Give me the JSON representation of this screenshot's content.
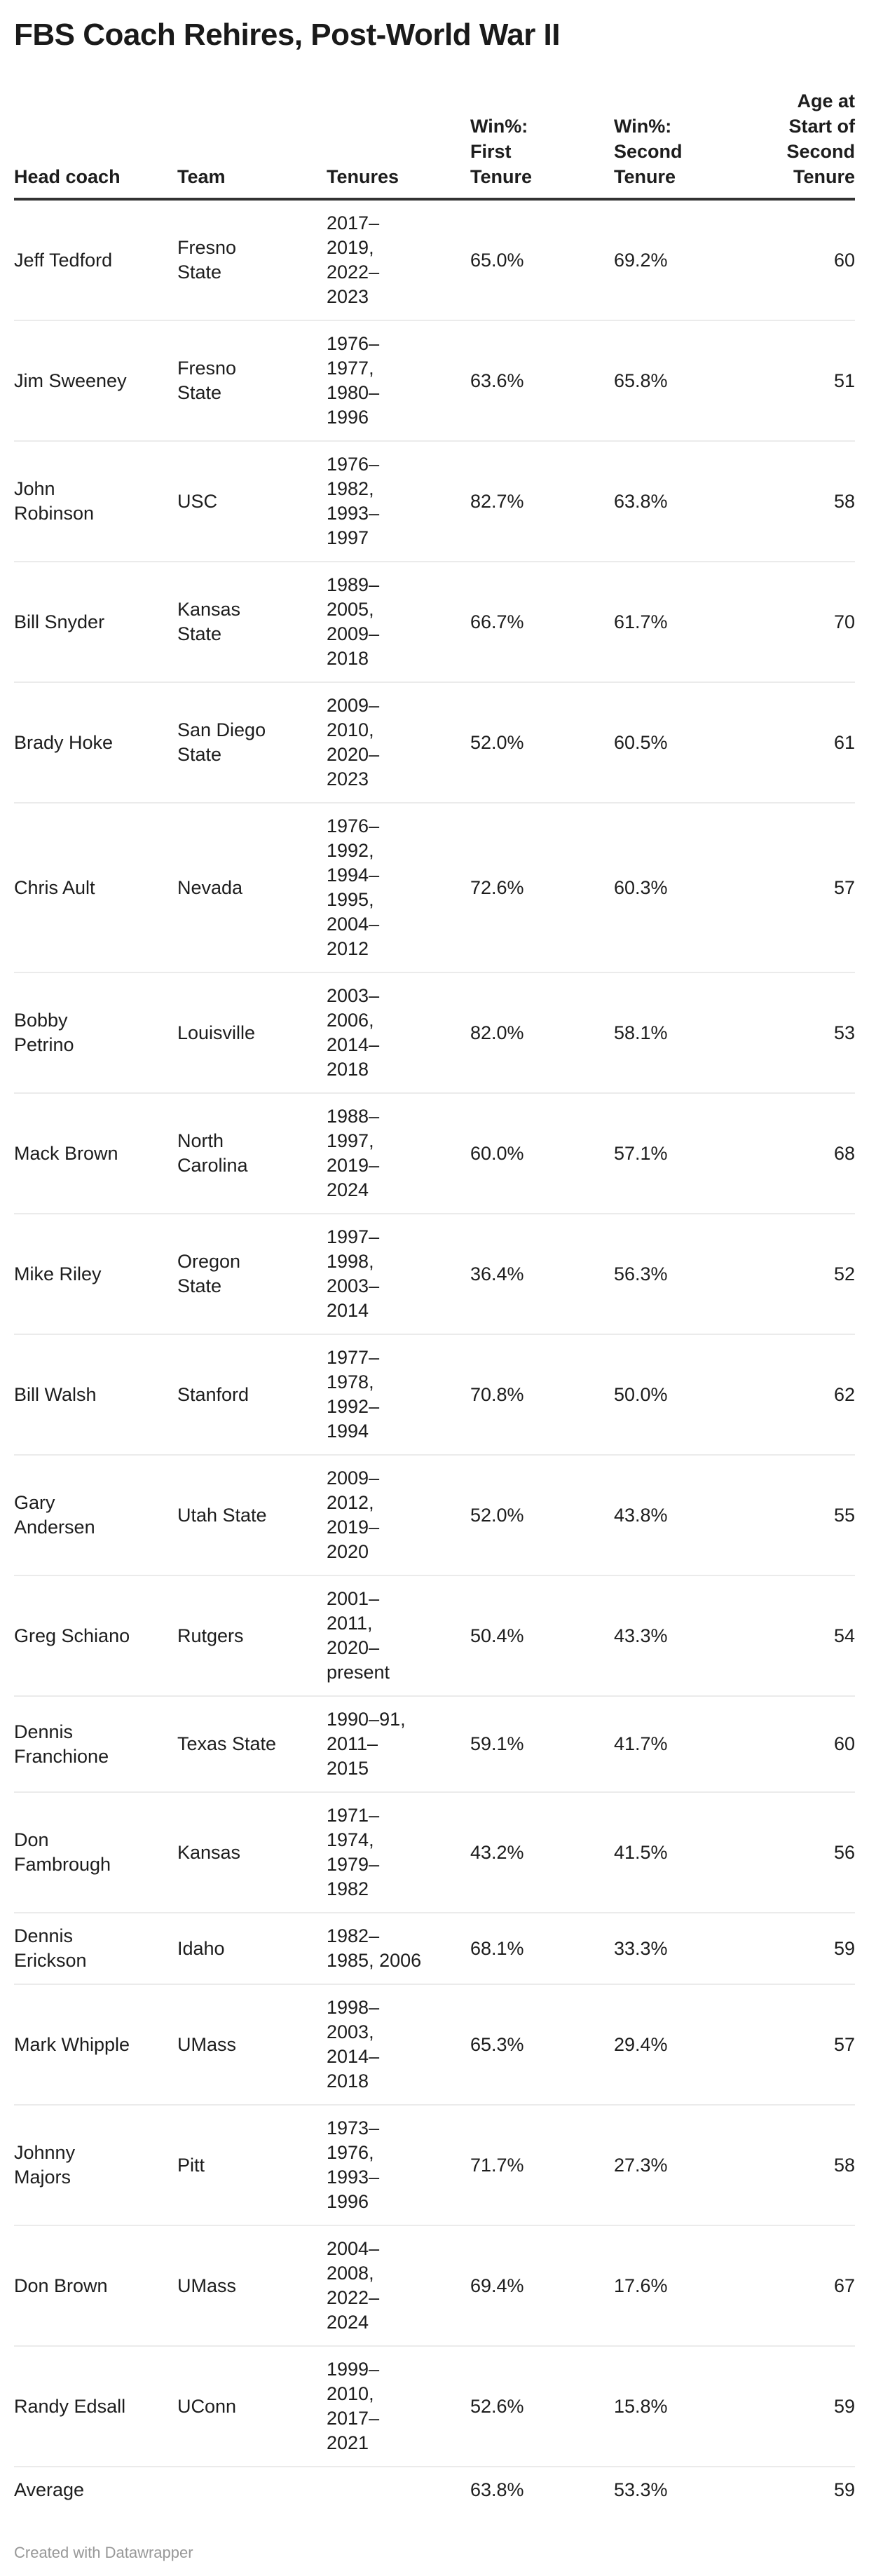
{
  "chart_data": {
    "type": "table",
    "title": "FBS Coach Rehires, Post-World War II",
    "columns": [
      {
        "id": "coach",
        "label": "Head coach",
        "align": "left"
      },
      {
        "id": "team",
        "label": "Team",
        "align": "left"
      },
      {
        "id": "tenures",
        "label": "Tenures",
        "align": "left"
      },
      {
        "id": "win_first",
        "label": [
          "Win%:",
          "First",
          "Tenure"
        ],
        "align": "left"
      },
      {
        "id": "win_second",
        "label": [
          "Win%:",
          "Second",
          "Tenure"
        ],
        "align": "left"
      },
      {
        "id": "age",
        "label": [
          "Age at",
          "Start of",
          "Second",
          "Tenure"
        ],
        "align": "right"
      }
    ],
    "rows": [
      {
        "coach": "Jeff Tedford",
        "team": [
          "Fresno",
          "State"
        ],
        "tenures": [
          "2017–",
          "2019,",
          "2022–",
          "2023"
        ],
        "win_first": "65.0%",
        "win_second": "69.2%",
        "age": "60"
      },
      {
        "coach": "Jim Sweeney",
        "team": [
          "Fresno",
          "State"
        ],
        "tenures": [
          "1976–",
          "1977,",
          "1980–",
          "1996"
        ],
        "win_first": "63.6%",
        "win_second": "65.8%",
        "age": "51"
      },
      {
        "coach": [
          "John",
          "Robinson"
        ],
        "team": "USC",
        "tenures": [
          "1976–",
          "1982,",
          "1993–",
          "1997"
        ],
        "win_first": "82.7%",
        "win_second": "63.8%",
        "age": "58"
      },
      {
        "coach": "Bill Snyder",
        "team": [
          "Kansas",
          "State"
        ],
        "tenures": [
          "1989–",
          "2005,",
          "2009–",
          "2018"
        ],
        "win_first": "66.7%",
        "win_second": "61.7%",
        "age": "70"
      },
      {
        "coach": "Brady Hoke",
        "team": [
          "San Diego",
          "State"
        ],
        "tenures": [
          "2009–",
          "2010,",
          "2020–",
          "2023"
        ],
        "win_first": "52.0%",
        "win_second": "60.5%",
        "age": "61"
      },
      {
        "coach": "Chris Ault",
        "team": "Nevada",
        "tenures": [
          "1976–",
          "1992,",
          "1994–",
          "1995,",
          "2004–",
          "2012"
        ],
        "win_first": "72.6%",
        "win_second": "60.3%",
        "age": "57"
      },
      {
        "coach": [
          "Bobby",
          "Petrino"
        ],
        "team": "Louisville",
        "tenures": [
          "2003–",
          "2006,",
          "2014–",
          "2018"
        ],
        "win_first": "82.0%",
        "win_second": "58.1%",
        "age": "53"
      },
      {
        "coach": "Mack Brown",
        "team": [
          "North",
          "Carolina"
        ],
        "tenures": [
          "1988–",
          "1997,",
          "2019–",
          "2024"
        ],
        "win_first": "60.0%",
        "win_second": "57.1%",
        "age": "68"
      },
      {
        "coach": "Mike Riley",
        "team": [
          "Oregon",
          "State"
        ],
        "tenures": [
          "1997–",
          "1998,",
          "2003–",
          "2014"
        ],
        "win_first": "36.4%",
        "win_second": "56.3%",
        "age": "52"
      },
      {
        "coach": "Bill Walsh",
        "team": "Stanford",
        "tenures": [
          "1977–",
          "1978,",
          "1992–",
          "1994"
        ],
        "win_first": "70.8%",
        "win_second": "50.0%",
        "age": "62"
      },
      {
        "coach": [
          "Gary",
          "Andersen"
        ],
        "team": "Utah State",
        "tenures": [
          "2009–",
          "2012,",
          "2019–",
          "2020"
        ],
        "win_first": "52.0%",
        "win_second": "43.8%",
        "age": "55"
      },
      {
        "coach": "Greg Schiano",
        "team": "Rutgers",
        "tenures": [
          "2001–",
          "2011,",
          "2020–",
          "present"
        ],
        "win_first": "50.4%",
        "win_second": "43.3%",
        "age": "54"
      },
      {
        "coach": [
          "Dennis",
          "Franchione"
        ],
        "team": "Texas State",
        "tenures": [
          "1990–91,",
          "2011–",
          "2015"
        ],
        "win_first": "59.1%",
        "win_second": "41.7%",
        "age": "60"
      },
      {
        "coach": [
          "Don",
          "Fambrough"
        ],
        "team": "Kansas",
        "tenures": [
          "1971–",
          "1974,",
          "1979–",
          "1982"
        ],
        "win_first": "43.2%",
        "win_second": "41.5%",
        "age": "56"
      },
      {
        "coach": [
          "Dennis",
          "Erickson"
        ],
        "team": "Idaho",
        "tenures": [
          "1982–",
          "1985, 2006"
        ],
        "win_first": "68.1%",
        "win_second": "33.3%",
        "age": "59"
      },
      {
        "coach": "Mark Whipple",
        "team": "UMass",
        "tenures": [
          "1998–",
          "2003,",
          "2014–",
          "2018"
        ],
        "win_first": "65.3%",
        "win_second": "29.4%",
        "age": "57"
      },
      {
        "coach": [
          "Johnny",
          "Majors"
        ],
        "team": "Pitt",
        "tenures": [
          "1973–",
          "1976,",
          "1993–",
          "1996"
        ],
        "win_first": "71.7%",
        "win_second": "27.3%",
        "age": "58"
      },
      {
        "coach": "Don Brown",
        "team": "UMass",
        "tenures": [
          "2004–",
          "2008,",
          "2022–",
          "2024"
        ],
        "win_first": "69.4%",
        "win_second": "17.6%",
        "age": "67"
      },
      {
        "coach": "Randy Edsall",
        "team": "UConn",
        "tenures": [
          "1999–",
          "2010,",
          "2017–",
          "2021"
        ],
        "win_first": "52.6%",
        "win_second": "15.8%",
        "age": "59"
      },
      {
        "coach": "Average",
        "team": "",
        "tenures": "",
        "win_first": "63.8%",
        "win_second": "53.3%",
        "age": "59"
      }
    ]
  },
  "footer": {
    "credit": "Created with Datawrapper"
  },
  "colors": {
    "text": "#1d1d1d",
    "title": "#1a1a1a",
    "header_rule": "#333333",
    "row_rule": "#ebebeb",
    "credit": "#989898",
    "background": "#ffffff"
  }
}
